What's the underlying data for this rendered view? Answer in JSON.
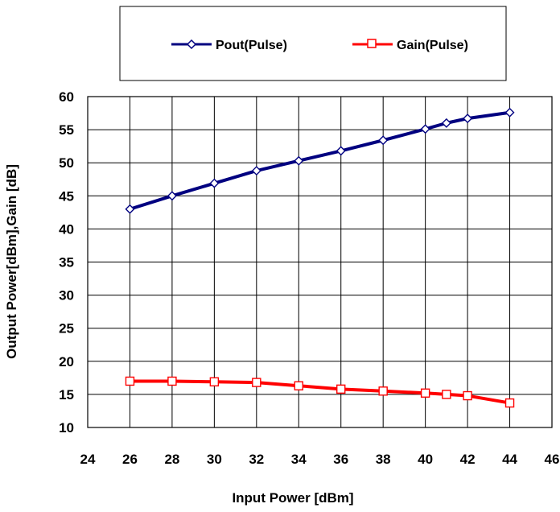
{
  "chart_data": {
    "type": "line",
    "xlabel": "Input Power [dBm]",
    "ylabel": "Output Power[dBm],Gain [dB]",
    "xlim": [
      24,
      46
    ],
    "ylim": [
      10,
      60
    ],
    "x_ticks": [
      24,
      26,
      28,
      30,
      32,
      34,
      36,
      38,
      40,
      42,
      44,
      46
    ],
    "y_ticks": [
      10,
      15,
      20,
      25,
      30,
      35,
      40,
      45,
      50,
      55,
      60
    ],
    "grid": true,
    "legend_position": "top",
    "series": [
      {
        "name": "Pout(Pulse)",
        "color": "#000080",
        "marker": "diamond",
        "x": [
          26,
          28,
          30,
          32,
          34,
          36,
          38,
          40,
          41,
          42,
          44
        ],
        "values": [
          43.0,
          45.0,
          46.9,
          48.8,
          50.3,
          51.8,
          53.4,
          55.1,
          56.0,
          56.7,
          57.6
        ]
      },
      {
        "name": "Gain(Pulse)",
        "color": "#ff0000",
        "marker": "square",
        "x": [
          26,
          28,
          30,
          32,
          34,
          36,
          38,
          40,
          41,
          42,
          44
        ],
        "values": [
          17.0,
          17.0,
          16.9,
          16.8,
          16.3,
          15.8,
          15.5,
          15.2,
          15.0,
          14.8,
          13.7
        ]
      }
    ]
  }
}
